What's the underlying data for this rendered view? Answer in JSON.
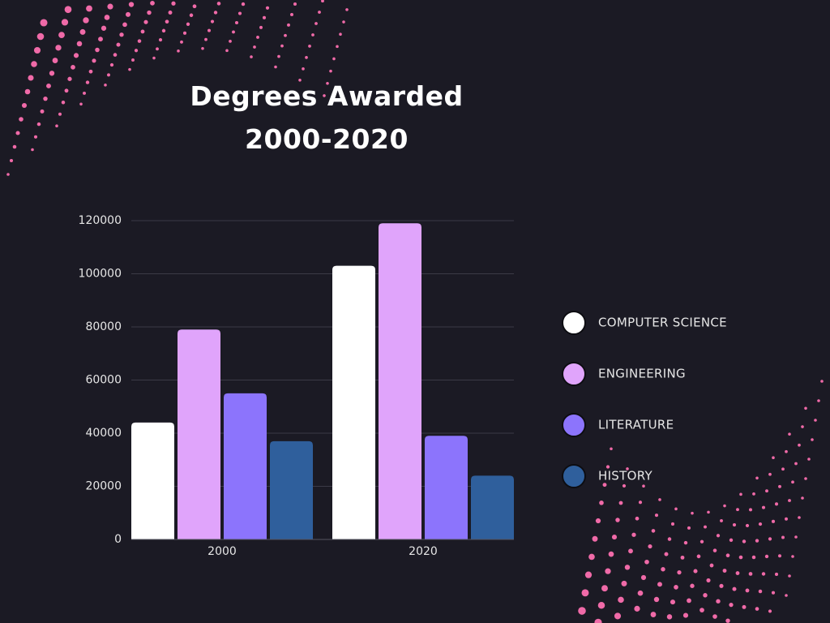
{
  "chart_data": {
    "type": "bar",
    "title": "Degrees Awarded 2000-2020",
    "categories": [
      "2000",
      "2020"
    ],
    "series": [
      {
        "name": "COMPUTER SCIENCE",
        "color": "#ffffff",
        "values": [
          44000,
          103000
        ]
      },
      {
        "name": "ENGINEERING",
        "color": "#e0a4fb",
        "values": [
          79000,
          119000
        ]
      },
      {
        "name": "LITERATURE",
        "color": "#8c74fc",
        "values": [
          55000,
          39000
        ]
      },
      {
        "name": "HISTORY",
        "color": "#2f5f9c",
        "values": [
          37000,
          24000
        ]
      }
    ],
    "ylim": [
      0,
      120000
    ],
    "yticks": [
      0,
      20000,
      40000,
      60000,
      80000,
      100000,
      120000
    ],
    "grid": true,
    "legend": "right"
  }
}
